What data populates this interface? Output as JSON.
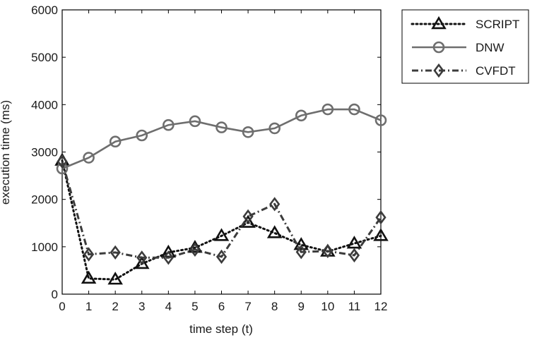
{
  "chart_data": {
    "type": "line",
    "title": "",
    "xlabel": "time step (t)",
    "ylabel": "execution time (ms)",
    "x": [
      0,
      1,
      2,
      3,
      4,
      5,
      6,
      7,
      8,
      9,
      10,
      11,
      12
    ],
    "xlim": [
      0,
      12
    ],
    "ylim": [
      0,
      6000
    ],
    "xticks": [
      "0",
      "1",
      "2",
      "3",
      "4",
      "5",
      "6",
      "7",
      "8",
      "9",
      "10",
      "11",
      "12"
    ],
    "yticks": [
      "0",
      "1000",
      "2000",
      "3000",
      "4000",
      "5000",
      "6000"
    ],
    "grid": false,
    "legend": "outside-top-right",
    "series": [
      {
        "name": "SCRIPT",
        "marker": "triangle",
        "line_style": "dotted",
        "color": "#111111",
        "values": [
          2820,
          330,
          310,
          640,
          880,
          980,
          1230,
          1510,
          1290,
          1040,
          900,
          1070,
          1230
        ]
      },
      {
        "name": "DNW",
        "marker": "circle",
        "line_style": "solid",
        "color": "#6e6e6e",
        "values": [
          2650,
          2880,
          3220,
          3350,
          3570,
          3650,
          3520,
          3420,
          3500,
          3770,
          3900,
          3900,
          3670
        ]
      },
      {
        "name": "CVFDT",
        "marker": "diamond",
        "line_style": "dash-dot",
        "color": "#3c3c3c",
        "values": [
          2800,
          840,
          880,
          770,
          770,
          940,
          790,
          1640,
          1900,
          890,
          910,
          820,
          1620
        ]
      }
    ]
  }
}
